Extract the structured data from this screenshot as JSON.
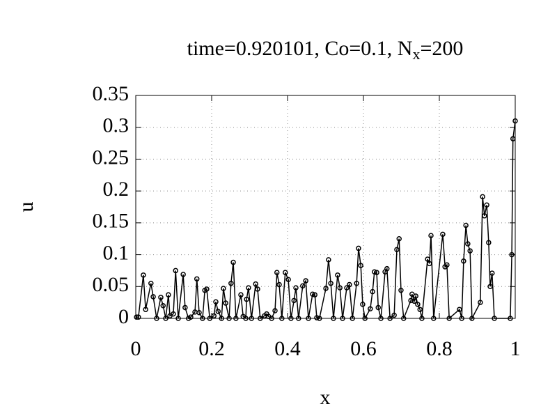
{
  "chart_data": {
    "type": "line",
    "title": [
      "time=0.920101, Co=0.1, N",
      "x",
      "=200"
    ],
    "x_label": "x",
    "y_label": "u",
    "color": "#000000",
    "grid": true,
    "xlim": [
      0,
      1
    ],
    "ylim": [
      0,
      0.35
    ],
    "xticks": [
      0,
      0.2,
      0.4,
      0.6,
      0.8,
      1
    ],
    "yticks": [
      0,
      0.05,
      0.1,
      0.15,
      0.2,
      0.25,
      0.3,
      0.35
    ],
    "x": [
      0.002,
      0.007,
      0.02,
      0.026,
      0.04,
      0.046,
      0.055,
      0.066,
      0.072,
      0.079,
      0.086,
      0.09,
      0.099,
      0.105,
      0.112,
      0.125,
      0.13,
      0.139,
      0.145,
      0.156,
      0.161,
      0.167,
      0.176,
      0.182,
      0.187,
      0.195,
      0.206,
      0.211,
      0.217,
      0.226,
      0.231,
      0.237,
      0.246,
      0.251,
      0.257,
      0.264,
      0.277,
      0.283,
      0.29,
      0.292,
      0.297,
      0.305,
      0.316,
      0.321,
      0.328,
      0.339,
      0.345,
      0.35,
      0.358,
      0.367,
      0.372,
      0.378,
      0.385,
      0.394,
      0.402,
      0.409,
      0.417,
      0.422,
      0.429,
      0.44,
      0.448,
      0.455,
      0.466,
      0.472,
      0.477,
      0.484,
      0.501,
      0.508,
      0.514,
      0.521,
      0.532,
      0.538,
      0.545,
      0.556,
      0.563,
      0.571,
      0.582,
      0.587,
      0.593,
      0.598,
      0.604,
      0.618,
      0.624,
      0.629,
      0.635,
      0.639,
      0.646,
      0.657,
      0.662,
      0.67,
      0.681,
      0.688,
      0.694,
      0.699,
      0.706,
      0.725,
      0.728,
      0.734,
      0.738,
      0.743,
      0.749,
      0.754,
      0.769,
      0.774,
      0.778,
      0.785,
      0.809,
      0.815,
      0.82,
      0.826,
      0.853,
      0.859,
      0.864,
      0.87,
      0.875,
      0.881,
      0.886,
      0.908,
      0.914,
      0.919,
      0.925,
      0.93,
      0.934,
      0.939,
      0.945,
      0.987,
      0.991,
      0.994,
      1.0
    ],
    "values": [
      0.002,
      0.002,
      0.068,
      0.014,
      0.055,
      0.034,
      0,
      0.033,
      0.02,
      0,
      0.037,
      0.004,
      0.007,
      0.075,
      0,
      0.069,
      0.017,
      0,
      0.002,
      0.01,
      0.062,
      0.009,
      0,
      0.044,
      0.046,
      0,
      0.004,
      0.026,
      0.011,
      0,
      0.047,
      0.024,
      0,
      0.055,
      0.088,
      0,
      0.037,
      0.003,
      0,
      0.03,
      0.048,
      0,
      0.054,
      0.046,
      0,
      0.004,
      0.007,
      0.003,
      0,
      0.012,
      0.072,
      0.053,
      0,
      0.072,
      0.061,
      0,
      0.028,
      0.048,
      0,
      0.051,
      0.059,
      0,
      0.038,
      0.037,
      0.001,
      0,
      0.047,
      0.092,
      0.055,
      0,
      0.068,
      0.048,
      0,
      0.048,
      0.053,
      0,
      0.055,
      0.11,
      0.083,
      0.022,
      0,
      0.015,
      0.042,
      0.073,
      0.072,
      0.017,
      0,
      0.073,
      0.078,
      0,
      0.005,
      0.108,
      0.125,
      0.044,
      0,
      0.028,
      0.038,
      0.027,
      0.035,
      0.022,
      0.014,
      0,
      0.093,
      0.086,
      0.13,
      0,
      0.132,
      0.081,
      0.084,
      0,
      0.014,
      0,
      0.09,
      0.146,
      0.117,
      0.106,
      0,
      0.025,
      0.191,
      0.161,
      0.178,
      0.119,
      0.05,
      0.071,
      0,
      0,
      0.1,
      0.282,
      0.31
    ]
  }
}
